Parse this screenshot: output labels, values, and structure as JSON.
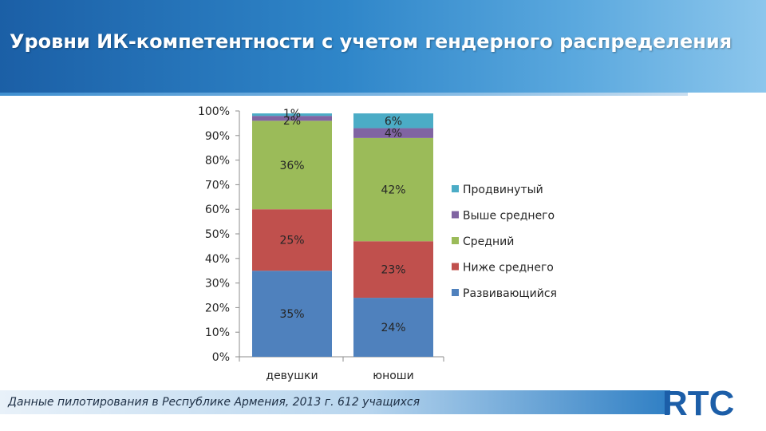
{
  "header": {
    "title": "Уровни ИК-компетентности с учетом гендерного распределения"
  },
  "colors": {
    "header_start": "#1b5fa6",
    "header_end": "#8cc6ec",
    "logo": "#1c5ea8"
  },
  "chart_data": {
    "type": "bar",
    "stacked": true,
    "title": "",
    "xlabel": "",
    "ylabel": "",
    "ylim": [
      0,
      100
    ],
    "categories": [
      "девушки",
      "юноши"
    ],
    "y_ticks": [
      "0%",
      "10%",
      "20%",
      "30%",
      "40%",
      "50%",
      "60%",
      "70%",
      "80%",
      "90%",
      "100%"
    ],
    "legend_position": "right",
    "series": [
      {
        "name": "Развивающийся",
        "values": [
          35,
          24
        ],
        "labels": [
          "35%",
          "24%"
        ],
        "color": "#4f81bd"
      },
      {
        "name": "Ниже среднего",
        "values": [
          25,
          23
        ],
        "labels": [
          "25%",
          "23%"
        ],
        "color": "#c0504d"
      },
      {
        "name": "Средний",
        "values": [
          36,
          42
        ],
        "labels": [
          "36%",
          "42%"
        ],
        "color": "#9bbb59"
      },
      {
        "name": "Выше среднего",
        "values": [
          2,
          4
        ],
        "labels": [
          "2%",
          "4%"
        ],
        "color": "#8064a2"
      },
      {
        "name": "Продвинутый",
        "values": [
          1,
          6
        ],
        "labels": [
          "1%",
          "6%"
        ],
        "color": "#4bacc6"
      }
    ]
  },
  "footer": {
    "note": "Данные пилотирования в Республике Армения, 2013 г. 612 учащихся"
  },
  "logo": {
    "text": "RTC"
  }
}
